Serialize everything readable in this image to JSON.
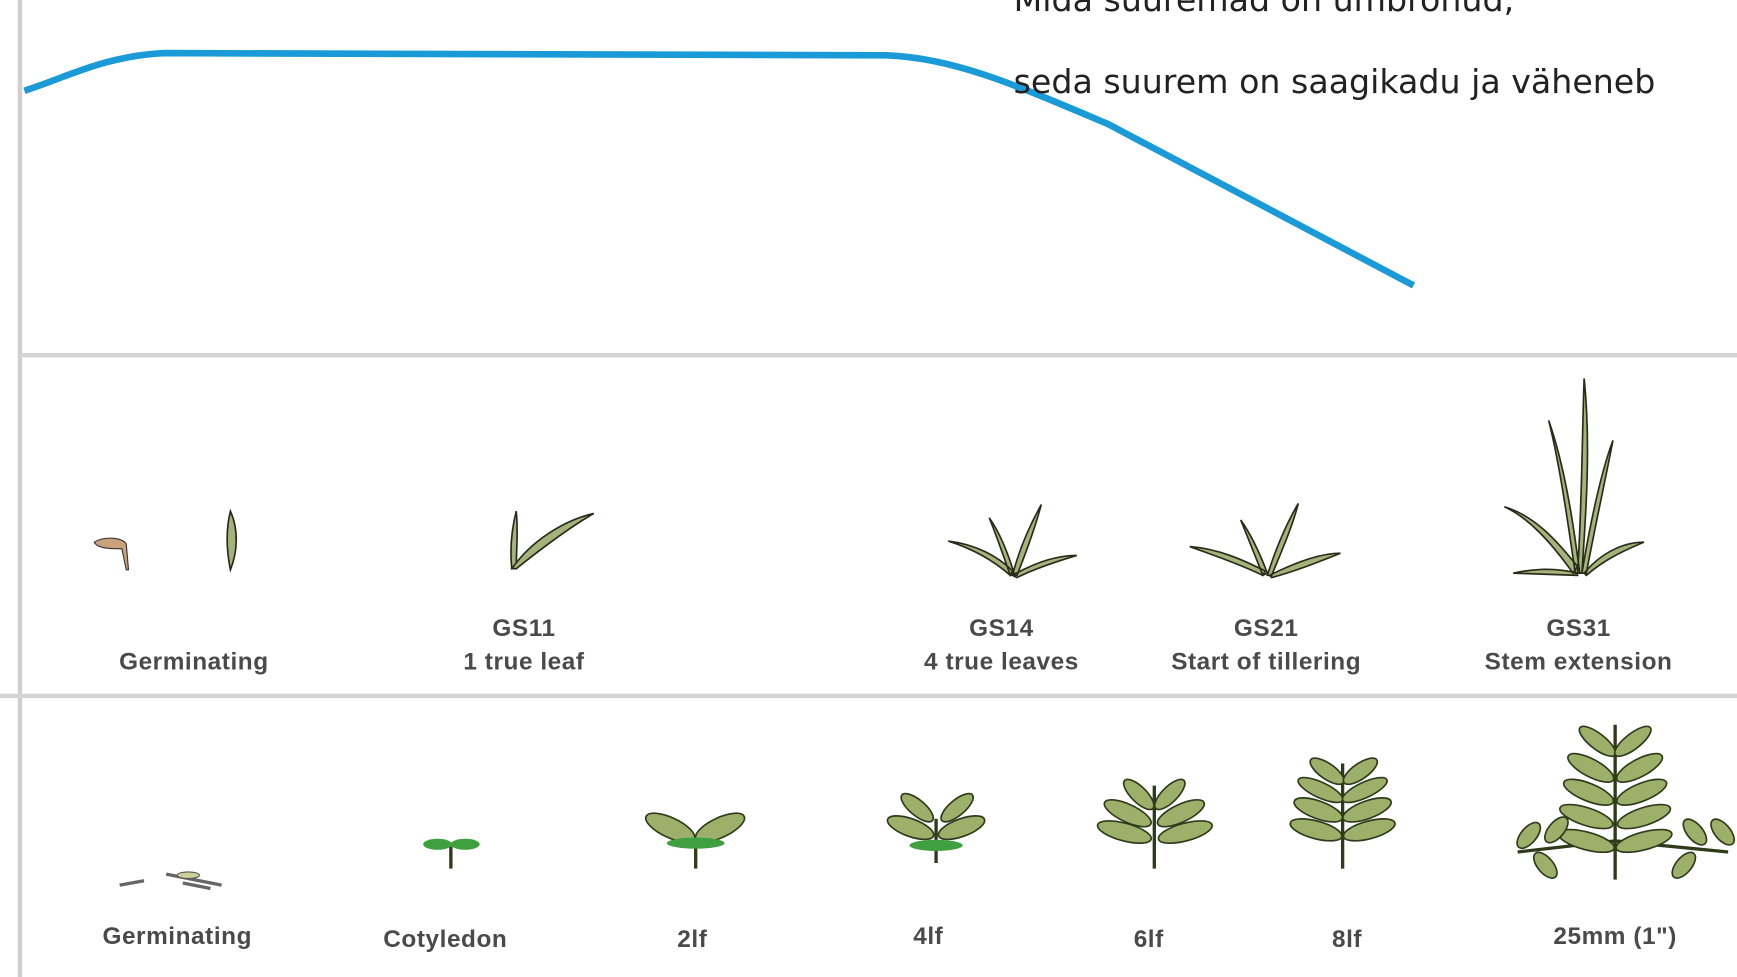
{
  "annotation": {
    "lines": [
      "Mida suuremad on umbrohud,",
      "seda suurem on saagikadu ja väheneb"
    ]
  },
  "cereal_stages": [
    {
      "label": "Germinating"
    },
    {
      "code": "GS11",
      "label": "1 true leaf"
    },
    {
      "code": "GS14",
      "label": "4 true leaves"
    },
    {
      "code": "GS21",
      "label": "Start of tillering"
    },
    {
      "code": "GS31",
      "label": "Stem extension"
    }
  ],
  "broadleaf_stages": [
    "Germinating",
    "Cotyledon",
    "2lf",
    "4lf",
    "6lf",
    "8lf",
    "25mm (1\")"
  ]
}
